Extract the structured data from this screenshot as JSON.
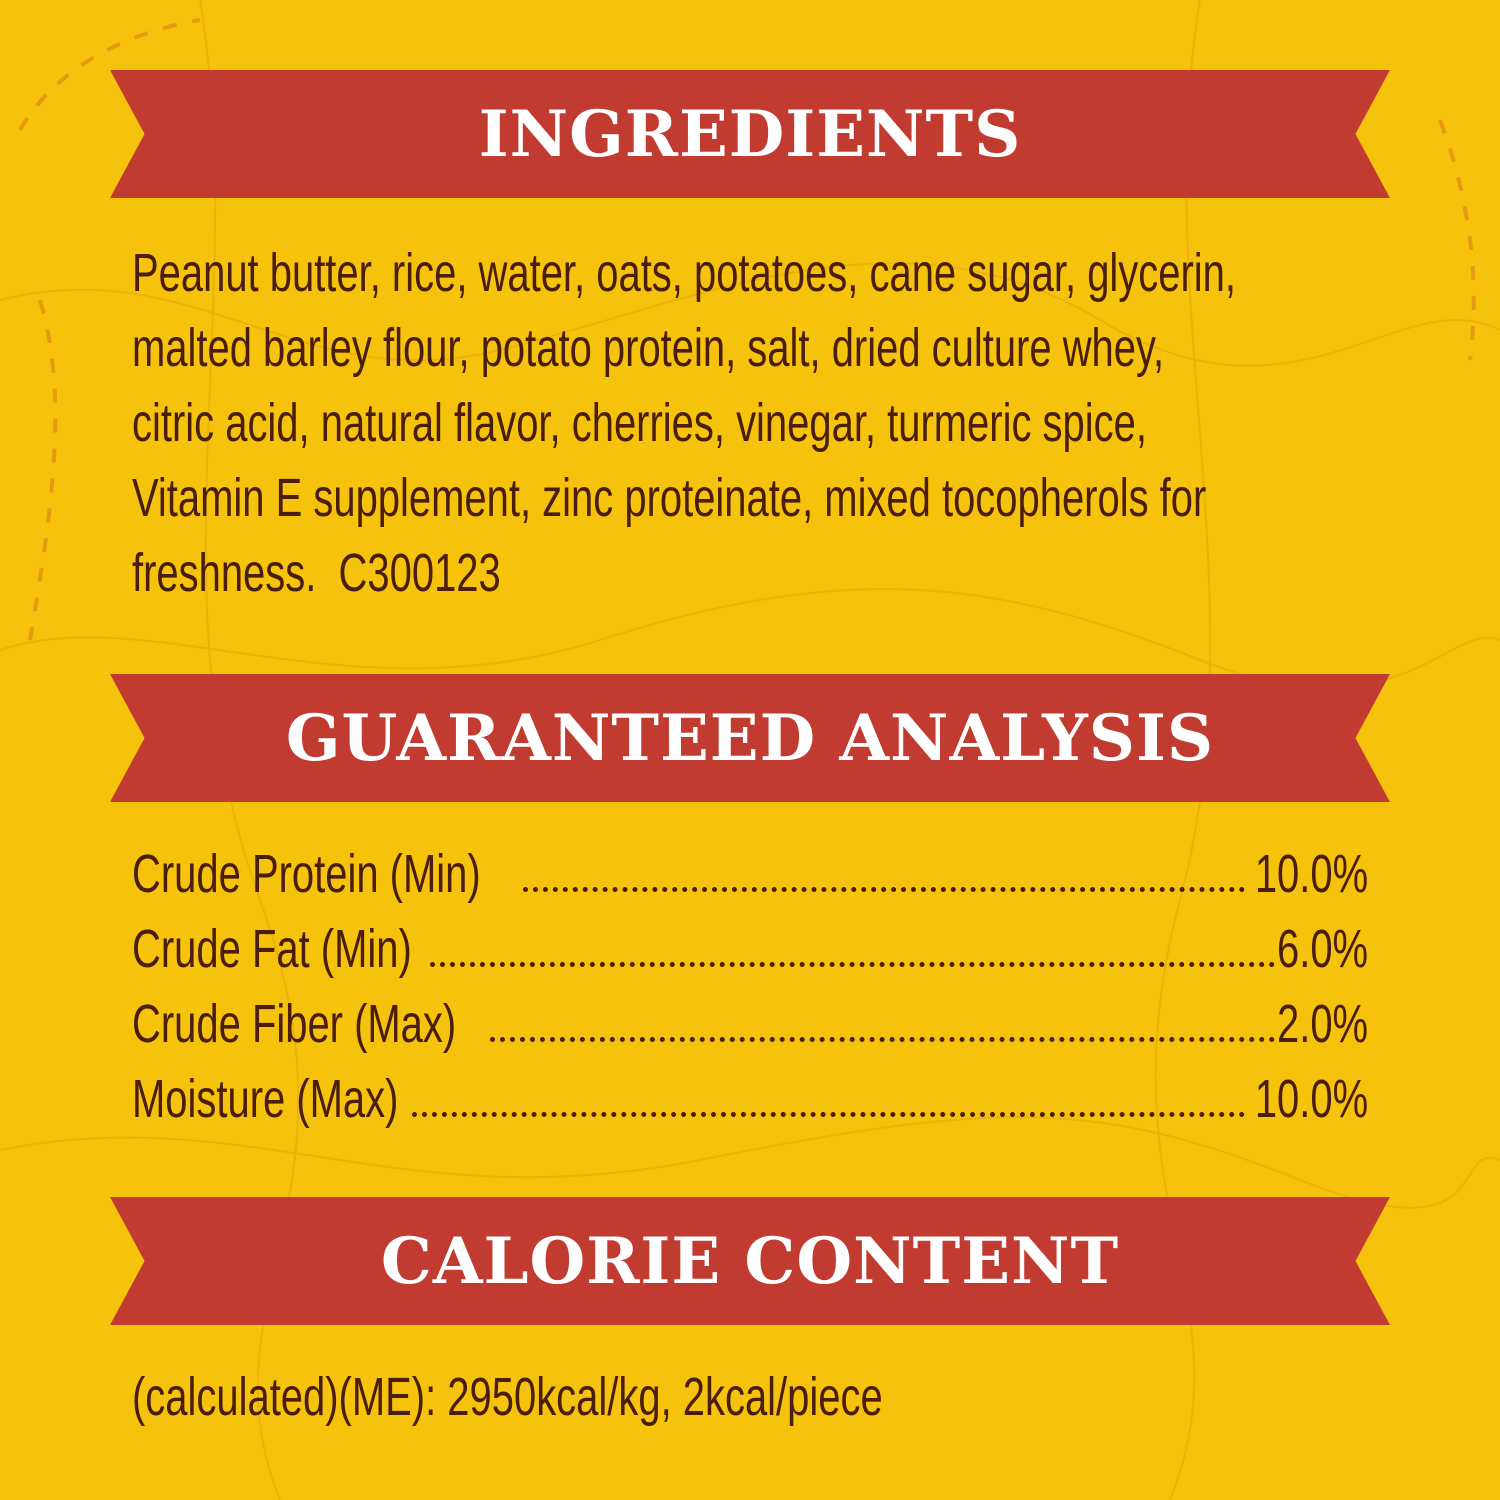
{
  "colors": {
    "background": "#F5C30C",
    "banner": "#C23B31",
    "text": "#4A1D0C",
    "banner_text": "#FFFFFF"
  },
  "ingredients": {
    "title": "INGREDIENTS",
    "lines": [
      "Peanut butter, rice, water, oats, potatoes, cane sugar, glycerin,",
      "malted barley flour, potato protein, salt, dried culture whey,",
      "citric acid, natural flavor, cherries, vinegar, turmeric spice,",
      "Vitamin E supplement, zinc proteinate, mixed tocopherols for",
      "freshness.  C300123"
    ]
  },
  "analysis": {
    "title": "GUARANTEED ANALYSIS",
    "rows": [
      {
        "label": "Crude Protein (Min)",
        "value": "10.0%"
      },
      {
        "label": "Crude Fat (Min)",
        "value": "6.0%"
      },
      {
        "label": "Crude Fiber (Max)",
        "value": "2.0%"
      },
      {
        "label": "Moisture (Max)",
        "value": "10.0%"
      }
    ]
  },
  "calorie": {
    "title": "CALORIE CONTENT",
    "text": "(calculated)(ME): 2950kcal/kg, 2kcal/piece"
  }
}
